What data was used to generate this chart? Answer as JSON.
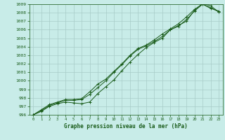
{
  "title": "Graphe pression niveau de la mer (hPa)",
  "bg_color": "#c8ece8",
  "grid_color": "#a8ccc8",
  "line_color": "#1a5c1a",
  "marker_color": "#1a5c1a",
  "xlim": [
    -0.5,
    23.5
  ],
  "ylim": [
    996,
    1009
  ],
  "xticks": [
    0,
    1,
    2,
    3,
    4,
    5,
    6,
    7,
    8,
    9,
    10,
    11,
    12,
    13,
    14,
    15,
    16,
    17,
    18,
    19,
    20,
    21,
    22,
    23
  ],
  "yticks": [
    996,
    997,
    998,
    999,
    1000,
    1001,
    1002,
    1003,
    1004,
    1005,
    1006,
    1007,
    1008,
    1009
  ],
  "series": [
    [
      996.0,
      996.6,
      997.2,
      997.5,
      997.8,
      997.8,
      997.9,
      998.7,
      999.6,
      1000.2,
      1001.1,
      1002.0,
      1003.0,
      1003.8,
      1004.2,
      1004.8,
      1005.5,
      1006.1,
      1006.7,
      1007.5,
      1008.4,
      1009.0,
      1008.5,
      1008.2
    ],
    [
      996.0,
      996.5,
      997.1,
      997.4,
      997.7,
      997.7,
      997.8,
      998.4,
      999.2,
      1000.0,
      1001.0,
      1001.9,
      1002.9,
      1003.7,
      1004.1,
      1004.6,
      1005.2,
      1006.0,
      1006.5,
      1007.0,
      1008.3,
      1009.1,
      1008.8,
      1008.1
    ],
    [
      996.0,
      996.4,
      997.0,
      997.3,
      997.5,
      997.4,
      997.3,
      997.5,
      998.5,
      999.3,
      1000.1,
      1001.2,
      1002.2,
      1003.1,
      1003.9,
      1004.5,
      1005.0,
      1006.0,
      1006.4,
      1007.2,
      1008.2,
      1009.0,
      1008.6,
      1008.1
    ]
  ]
}
